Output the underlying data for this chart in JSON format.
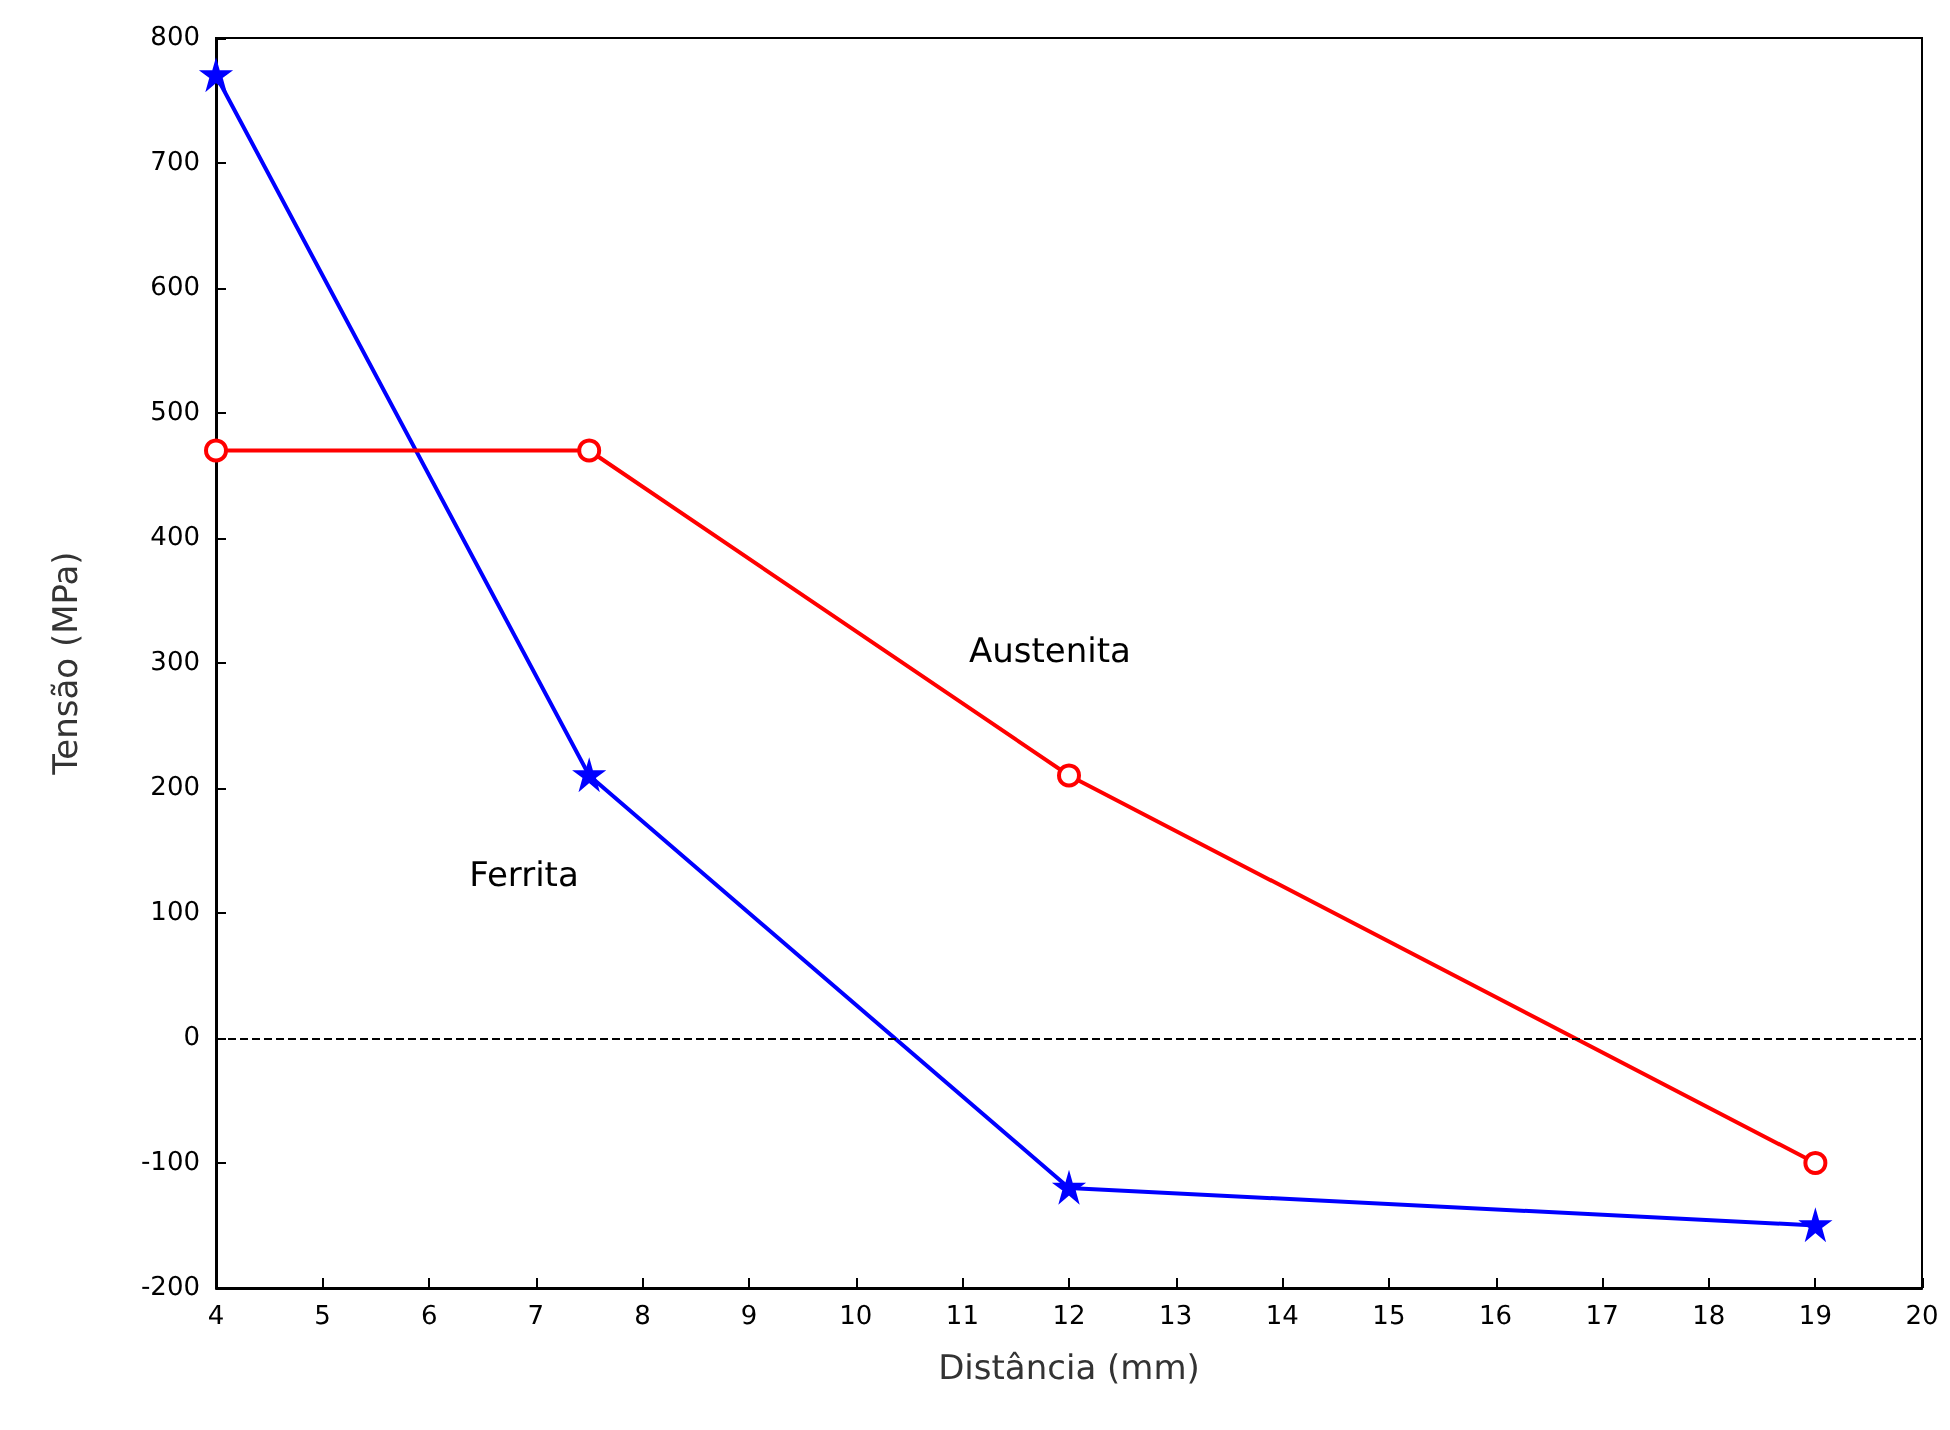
{
  "chart_data": {
    "type": "line",
    "xlabel": "Distância (mm)",
    "ylabel": "Tensão (MPa)",
    "xlim": [
      4,
      20
    ],
    "xticks": [
      4,
      5,
      6,
      7,
      8,
      9,
      10,
      11,
      12,
      13,
      14,
      15,
      16,
      17,
      18,
      19,
      20
    ],
    "ylim": [
      -200,
      800
    ],
    "yticks": [
      -200,
      -100,
      0,
      100,
      200,
      300,
      400,
      500,
      600,
      700,
      800
    ],
    "grid": false,
    "legend": false,
    "line_style": "solid",
    "series": [
      {
        "name": "Ferrita",
        "color": "#0000ff",
        "marker": "star",
        "x": [
          4,
          7.5,
          12,
          19
        ],
        "values": [
          770,
          210,
          -120,
          -150
        ]
      },
      {
        "name": "Austenita",
        "color": "#ff0000",
        "marker": "circle",
        "x": [
          4,
          7.5,
          12,
          19
        ],
        "values": [
          470,
          470,
          210,
          -100
        ]
      }
    ],
    "ref_lines": [
      {
        "axis": "y",
        "value": 0,
        "color": "#000000",
        "line_style": "dashed"
      }
    ]
  }
}
